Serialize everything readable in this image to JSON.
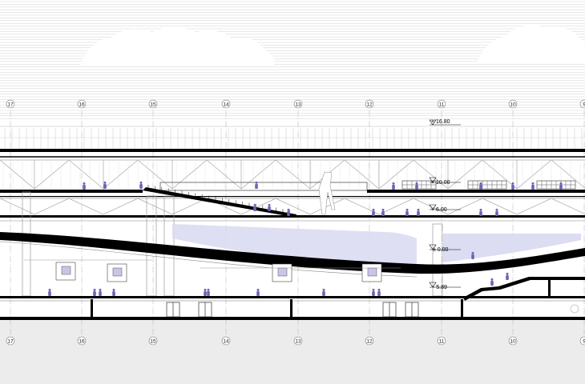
{
  "grid_axes": {
    "labels": [
      "17",
      "16",
      "15",
      "14",
      "13",
      "12",
      "11",
      "10",
      "9"
    ]
  },
  "levels": {
    "roof": "+ 16.80",
    "upper": "+ 10.00",
    "middle": "+ 6.00",
    "ground": "± 0.00",
    "lower": "- 5.89"
  },
  "colors": {
    "line": "#000000",
    "thin_line": "#9a9a9a",
    "figure": "#6b63b5",
    "glass": "#dcdcf2",
    "ground_fill": "#ececec"
  }
}
